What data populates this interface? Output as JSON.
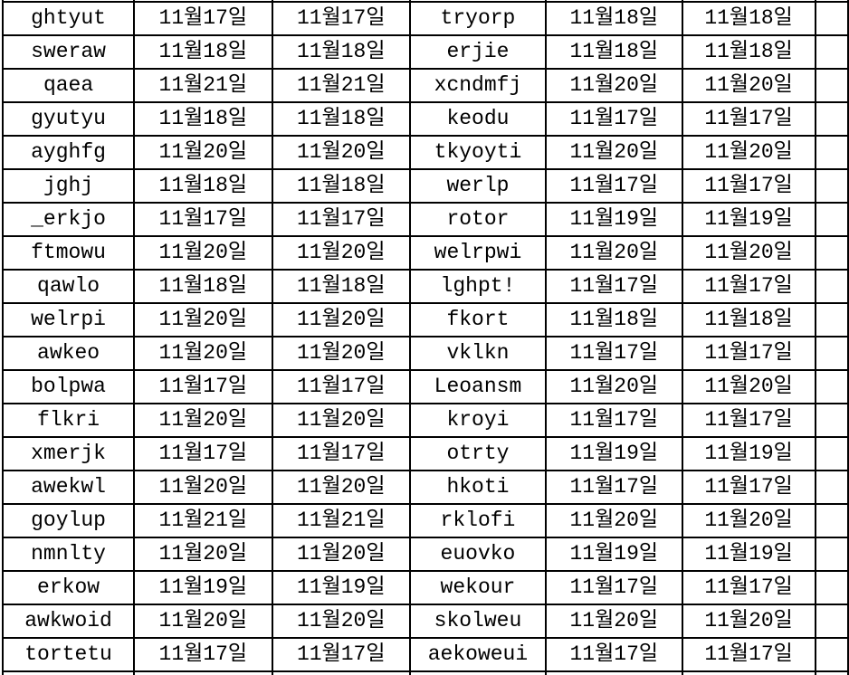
{
  "colors": {
    "background": "#ffffff",
    "grid_border": "#000000",
    "text": "#000000"
  },
  "table": {
    "rows": [
      [
        "ghtyut",
        "11월17일",
        "11월17일",
        "tryorp",
        "11월18일",
        "11월18일"
      ],
      [
        "sweraw",
        "11월18일",
        "11월18일",
        "erjie",
        "11월18일",
        "11월18일"
      ],
      [
        "qaea",
        "11월21일",
        "11월21일",
        "xcndmfj",
        "11월20일",
        "11월20일"
      ],
      [
        "gyutyu",
        "11월18일",
        "11월18일",
        "keodu",
        "11월17일",
        "11월17일"
      ],
      [
        "ayghfg",
        "11월20일",
        "11월20일",
        "tkyoyti",
        "11월20일",
        "11월20일"
      ],
      [
        "jghj",
        "11월18일",
        "11월18일",
        "werlp",
        "11월17일",
        "11월17일"
      ],
      [
        "_erkjo",
        "11월17일",
        "11월17일",
        "rotor",
        "11월19일",
        "11월19일"
      ],
      [
        "ftmowu",
        "11월20일",
        "11월20일",
        "welrpwi",
        "11월20일",
        "11월20일"
      ],
      [
        "qawlo",
        "11월18일",
        "11월18일",
        "lghpt!",
        "11월17일",
        "11월17일"
      ],
      [
        "welrpi",
        "11월20일",
        "11월20일",
        "fkort",
        "11월18일",
        "11월18일"
      ],
      [
        "awkeo",
        "11월20일",
        "11월20일",
        "vklkn",
        "11월17일",
        "11월17일"
      ],
      [
        "bolpwa",
        "11월17일",
        "11월17일",
        "Leoansm",
        "11월20일",
        "11월20일"
      ],
      [
        "flkri",
        "11월20일",
        "11월20일",
        "kroyi",
        "11월17일",
        "11월17일"
      ],
      [
        "xmerjk",
        "11월17일",
        "11월17일",
        "otrty",
        "11월19일",
        "11월19일"
      ],
      [
        "awekwl",
        "11월20일",
        "11월20일",
        "hkoti",
        "11월17일",
        "11월17일"
      ],
      [
        "goylup",
        "11월21일",
        "11월21일",
        "rklofi",
        "11월20일",
        "11월20일"
      ],
      [
        "nmnlty",
        "11월20일",
        "11월20일",
        "euovko",
        "11월19일",
        "11월19일"
      ],
      [
        "erkow",
        "11월19일",
        "11월19일",
        "wekour",
        "11월17일",
        "11월17일"
      ],
      [
        "awkwoid",
        "11월20일",
        "11월20일",
        "skolweu",
        "11월20일",
        "11월20일"
      ],
      [
        "tortetu",
        "11월17일",
        "11월17일",
        "aekoweui",
        "11월17일",
        "11월17일"
      ]
    ]
  }
}
